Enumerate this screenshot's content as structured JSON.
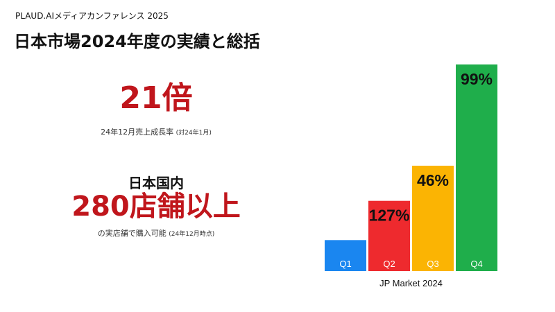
{
  "header": {
    "conference": "PLAUD.AIメディアカンファレンス 2025"
  },
  "title": "日本市場2024年度の実績と総括",
  "stat1": {
    "value": "21倍",
    "caption": "24年12月売上成長率",
    "caption_note": "(対24年1月)"
  },
  "stat2": {
    "heading": "日本国内",
    "value": "280店舗以上",
    "caption": "の実店舗で購入可能",
    "caption_note": "(24年12月時点)"
  },
  "colors": {
    "accent_red": "#c0161c",
    "q1": "#1a86f0",
    "q2": "#ee2a2e",
    "q3": "#fbb403",
    "q4": "#1fae4b"
  },
  "chart_data": {
    "type": "bar",
    "title": "",
    "xlabel": "JP Market 2024",
    "ylabel": "",
    "categories": [
      "Q1",
      "Q2",
      "Q3",
      "Q4"
    ],
    "bar_level": [
      0.15,
      0.34,
      0.51,
      1.0
    ],
    "value_labels": [
      "",
      "127%",
      "46%",
      "99%"
    ],
    "bar_colors": [
      "#1a86f0",
      "#ee2a2e",
      "#fbb403",
      "#1fae4b"
    ]
  }
}
